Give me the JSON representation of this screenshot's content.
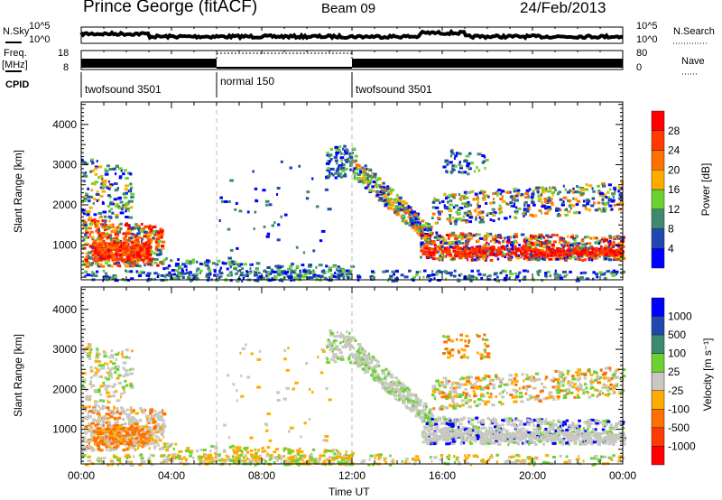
{
  "header": {
    "title": "Prince George (fitACF)",
    "beam": "Beam 09",
    "date": "24/Feb/2013"
  },
  "nsky": {
    "label": "N.Sky",
    "ticks": [
      "10^5",
      "10^0"
    ],
    "right_label": "N.Search",
    "right_ticks": [
      "10^5",
      "10^0"
    ]
  },
  "freq": {
    "label_1": "Freq.",
    "label_2": "[MHz]",
    "ticks": [
      "18",
      "8"
    ],
    "right_label": "Nave",
    "right_ticks": [
      "80",
      "0"
    ]
  },
  "cpid": {
    "label": "CPID",
    "segments": [
      {
        "start": 0,
        "name": "twofsound 3501"
      },
      {
        "start": 6,
        "name": "normal 150"
      },
      {
        "start": 12,
        "name": "twofsound 3501"
      }
    ]
  },
  "chart_data": {
    "type": "heatmap",
    "xlabel": "Time UT",
    "x_ticks": [
      "00:00",
      "04:00",
      "08:00",
      "12:00",
      "16:00",
      "20:00",
      "00:00"
    ],
    "xlim_hours": [
      0,
      24
    ],
    "ylabel": "Slant Range [km]",
    "ylim": [
      135,
      4560
    ],
    "y_ticks": [
      "1000",
      "2000",
      "3000",
      "4000"
    ],
    "panels": [
      {
        "name": "power",
        "colorbar_label": "Power [dB]",
        "colorbar_ticks": [
          "28",
          "24",
          "20",
          "16",
          "12",
          "8",
          "4"
        ],
        "colors": [
          "#0000ff",
          "#2048b0",
          "#3e8a6e",
          "#6cd232",
          "#ffac00",
          "#ff7000",
          "#ff3a00",
          "#ff0000"
        ]
      },
      {
        "name": "velocity",
        "colorbar_label": "Velocity [m s⁻¹]",
        "colorbar_ticks": [
          "1000",
          "500",
          "100",
          "25",
          "-25",
          "-100",
          "-500",
          "-1000"
        ],
        "colors": [
          "#0000ff",
          "#2048b0",
          "#3e8a6e",
          "#6cd232",
          "#c8c8c0",
          "#ffac00",
          "#ff7000",
          "#ff3a00",
          "#ff0000"
        ]
      }
    ],
    "echo_regions": [
      {
        "t": [
          0,
          3.6
        ],
        "r0": [
          500,
          500
        ],
        "r1": [
          1700,
          1500
        ],
        "n": 420,
        "power": [
          1,
          7
        ],
        "vel": [
          4,
          4,
          4,
          5,
          6
        ]
      },
      {
        "t": [
          0.5,
          3
        ],
        "r0": [
          650,
          650
        ],
        "r1": [
          1150,
          1100
        ],
        "n": 260,
        "power": [
          5,
          7
        ],
        "vel": [
          6,
          6,
          5,
          4
        ]
      },
      {
        "t": [
          0,
          2.2
        ],
        "r0": [
          1700,
          1700
        ],
        "r1": [
          3200,
          3000
        ],
        "n": 150,
        "power": [
          0,
          4
        ],
        "vel": [
          4,
          4,
          3,
          5
        ]
      },
      {
        "t": [
          3.5,
          12
        ],
        "r0": [
          150,
          150
        ],
        "r1": [
          700,
          500
        ],
        "n": 260,
        "power": [
          0,
          3
        ],
        "vel": [
          5,
          5,
          3,
          4
        ]
      },
      {
        "t": [
          6,
          11
        ],
        "r0": [
          700,
          700
        ],
        "r1": [
          3200,
          3200
        ],
        "n": 50,
        "power": [
          0,
          2
        ],
        "vel": [
          4,
          5
        ]
      },
      {
        "t": [
          10.8,
          12
        ],
        "r0": [
          2700,
          2700
        ],
        "r1": [
          3500,
          3500
        ],
        "n": 80,
        "power": [
          0,
          3
        ],
        "vel": [
          4,
          4,
          3
        ]
      },
      {
        "t": [
          12,
          15.5
        ],
        "r0": [
          2700,
          1000
        ],
        "r1": [
          3300,
          1500
        ],
        "n": 320,
        "power": [
          0,
          5
        ],
        "vel": [
          4,
          4,
          4,
          3
        ]
      },
      {
        "t": [
          15,
          24
        ],
        "r0": [
          650,
          650
        ],
        "r1": [
          1350,
          1250
        ],
        "n": 700,
        "power": [
          0,
          7
        ],
        "vel": [
          4,
          4,
          4,
          4,
          3,
          0
        ]
      },
      {
        "t": [
          15,
          24
        ],
        "r0": [
          750,
          750
        ],
        "r1": [
          1000,
          950
        ],
        "n": 300,
        "power": [
          6,
          7
        ],
        "vel": [
          4,
          4
        ]
      },
      {
        "t": [
          15.5,
          24
        ],
        "r0": [
          1500,
          1900
        ],
        "r1": [
          2300,
          2600
        ],
        "n": 420,
        "power": [
          0,
          5
        ],
        "vel": [
          4,
          3,
          5,
          6,
          4
        ]
      },
      {
        "t": [
          16,
          18
        ],
        "r0": [
          2800,
          2800
        ],
        "r1": [
          3400,
          3400
        ],
        "n": 50,
        "power": [
          0,
          3
        ],
        "vel": [
          5,
          6,
          3
        ]
      },
      {
        "t": [
          0,
          24
        ],
        "r0": [
          135,
          135
        ],
        "r1": [
          400,
          400
        ],
        "n": 300,
        "power": [
          0,
          3
        ],
        "vel": [
          5,
          3,
          4
        ]
      }
    ]
  }
}
